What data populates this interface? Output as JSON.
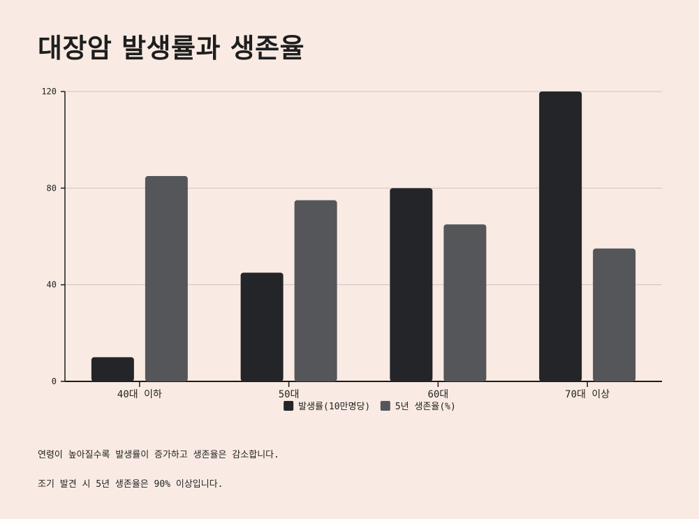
{
  "title": "대장암 발생률과 생존율",
  "chart_data": {
    "type": "bar",
    "categories": [
      "40대 이하",
      "50대",
      "60대",
      "70대 이상"
    ],
    "series": [
      {
        "name": "발생률(10만명당)",
        "values": [
          10,
          45,
          80,
          120
        ],
        "color": "#242528"
      },
      {
        "name": "5년 생존율(%)",
        "values": [
          85,
          75,
          65,
          55
        ],
        "color": "#54565a"
      }
    ],
    "ylim": [
      0,
      120
    ],
    "yticks": [
      0,
      40,
      80,
      120
    ],
    "grid": true,
    "legend": "bottom"
  },
  "notes": [
    "연령이 높아질수록 발생률이 증가하고 생존율은 감소합니다.",
    "조기 발견 시 5년 생존율은 90% 이상입니다."
  ]
}
